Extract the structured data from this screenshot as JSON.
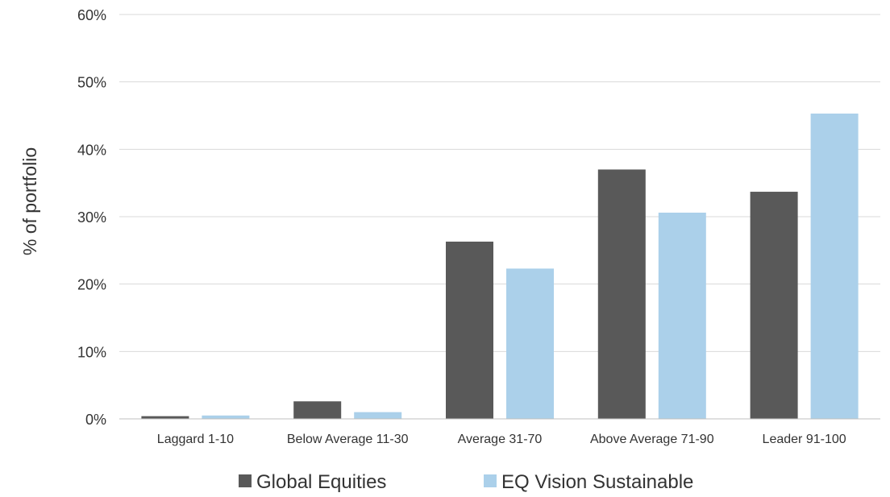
{
  "chart_data": {
    "type": "bar",
    "title": "",
    "xlabel": "",
    "ylabel": "% of portfolio",
    "ylim": [
      0,
      60
    ],
    "yticks": [
      0,
      10,
      20,
      30,
      40,
      50,
      60
    ],
    "ytick_suffix": "%",
    "grid": true,
    "legend_position": "bottom",
    "categories": [
      "Laggard 1-10",
      "Below Average  11-30",
      "Average 31-70",
      "Above Average 71-90",
      "Leader 91-100"
    ],
    "series": [
      {
        "name": "Global Equities",
        "color": "#595959",
        "values": [
          0.4,
          2.6,
          26.3,
          37.0,
          33.7
        ]
      },
      {
        "name": "EQ Vision Sustainable",
        "color": "#abd0ea",
        "values": [
          0.5,
          1.0,
          22.3,
          30.6,
          45.3
        ]
      }
    ]
  }
}
